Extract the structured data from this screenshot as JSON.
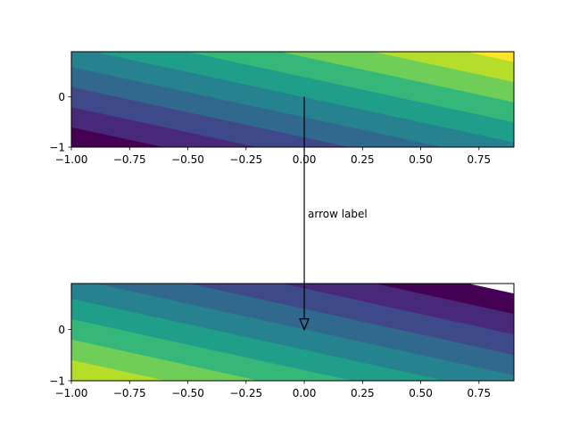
{
  "chart_data": [
    {
      "type": "heatmap",
      "subtype": "filled-contour",
      "title": "",
      "xlabel": "",
      "ylabel": "",
      "xlim": [
        -1.0,
        0.9
      ],
      "ylim": [
        -1.0,
        0.9
      ],
      "x_ticks": [
        "−1.00",
        "−0.75",
        "−0.50",
        "−0.25",
        "0.00",
        "0.25",
        "0.50",
        "0.75"
      ],
      "y_ticks": [
        "−1",
        "0"
      ],
      "field": "x + y",
      "levels": [
        -2.0,
        -1.6,
        -1.2,
        -0.8,
        -0.4,
        0.0,
        0.4,
        0.8,
        1.2,
        1.6
      ],
      "colormap": [
        "#440154",
        "#482878",
        "#3e4989",
        "#31688e",
        "#26828e",
        "#1f9e89",
        "#35b779",
        "#6ece58",
        "#b5de2b",
        "#fde725"
      ]
    },
    {
      "type": "heatmap",
      "subtype": "filled-contour",
      "title": "",
      "xlabel": "",
      "ylabel": "",
      "xlim": [
        -1.0,
        0.9
      ],
      "ylim": [
        -1.0,
        0.9
      ],
      "x_ticks": [
        "−1.00",
        "−0.75",
        "−0.50",
        "−0.25",
        "0.00",
        "0.25",
        "0.50",
        "0.75"
      ],
      "y_ticks": [
        "−1",
        "0"
      ],
      "field": "-(x + y)",
      "levels": [
        -1.6,
        -1.2,
        -0.8,
        -0.4,
        0.0,
        0.4,
        0.8,
        1.2,
        1.6,
        2.0
      ],
      "colormap": [
        "#440154",
        "#482878",
        "#3e4989",
        "#31688e",
        "#26828e",
        "#1f9e89",
        "#35b779",
        "#6ece58",
        "#b5de2b",
        "#fde725"
      ]
    }
  ],
  "annotation": {
    "text": "arrow label",
    "from": {
      "axes": 0,
      "x": 0.0,
      "y": 0.0
    },
    "to": {
      "axes": 1,
      "x": 0.0,
      "y": 0.0
    },
    "color": "#000000"
  }
}
